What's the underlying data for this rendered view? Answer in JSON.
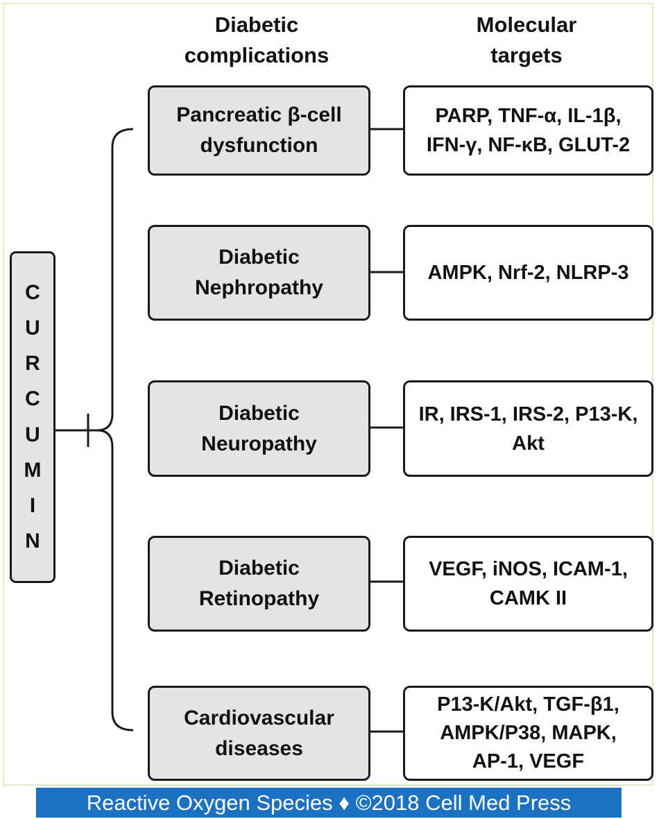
{
  "headers": {
    "complications": [
      "Diabetic",
      "complications"
    ],
    "targets": [
      "Molecular",
      "targets"
    ]
  },
  "drug": {
    "name": "CURCUMIN",
    "letters": [
      "C",
      "U",
      "R",
      "C",
      "U",
      "M",
      "I",
      "N"
    ]
  },
  "rows": [
    {
      "complication": [
        "Pancreatic β-cell",
        "dysfunction"
      ],
      "targets": [
        "PARP, TNF-α, IL-1β,",
        "IFN-γ, NF-κB, GLUT-2"
      ]
    },
    {
      "complication": [
        "Diabetic",
        "Nephropathy"
      ],
      "targets": [
        "AMPK, Nrf-2, NLRP-3"
      ]
    },
    {
      "complication": [
        "Diabetic",
        "Neuropathy"
      ],
      "targets": [
        "IR, IRS-1, IRS-2, P13-K,",
        "Akt"
      ]
    },
    {
      "complication": [
        "Diabetic",
        "Retinopathy"
      ],
      "targets": [
        "VEGF, iNOS, ICAM-1,",
        "CAMK II"
      ]
    },
    {
      "complication": [
        "Cardiovascular",
        "diseases"
      ],
      "targets": [
        "P13-K/Akt, TGF-β1,",
        "AMPK/P38, MAPK,",
        "AP-1, VEGF"
      ]
    }
  ],
  "footer": "Reactive Oxygen Species ♦ ©2018 Cell Med Press",
  "colors": {
    "box_fill": "#e4e4e4",
    "footer_bg": "#1c72c0",
    "border": "#1a1a1a"
  }
}
